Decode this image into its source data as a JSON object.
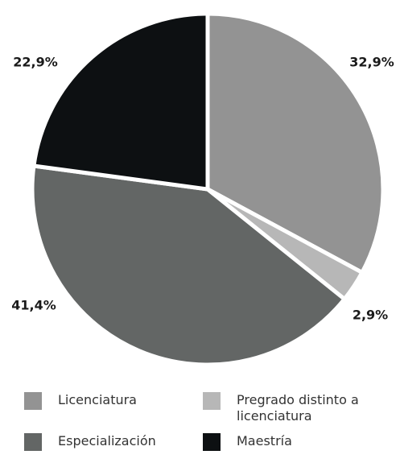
{
  "chart_data": {
    "type": "pie",
    "categories": [
      "Licenciatura",
      "Pregrado distinto a licenciatura",
      "Especialización",
      "Maestría"
    ],
    "values": [
      32.9,
      2.9,
      41.4,
      22.9
    ],
    "value_labels": [
      "32,9%",
      "2,9%",
      "41,4%",
      "22,9%"
    ],
    "colors": [
      "#939393",
      "#b7b7b7",
      "#636665",
      "#0d1012"
    ]
  }
}
